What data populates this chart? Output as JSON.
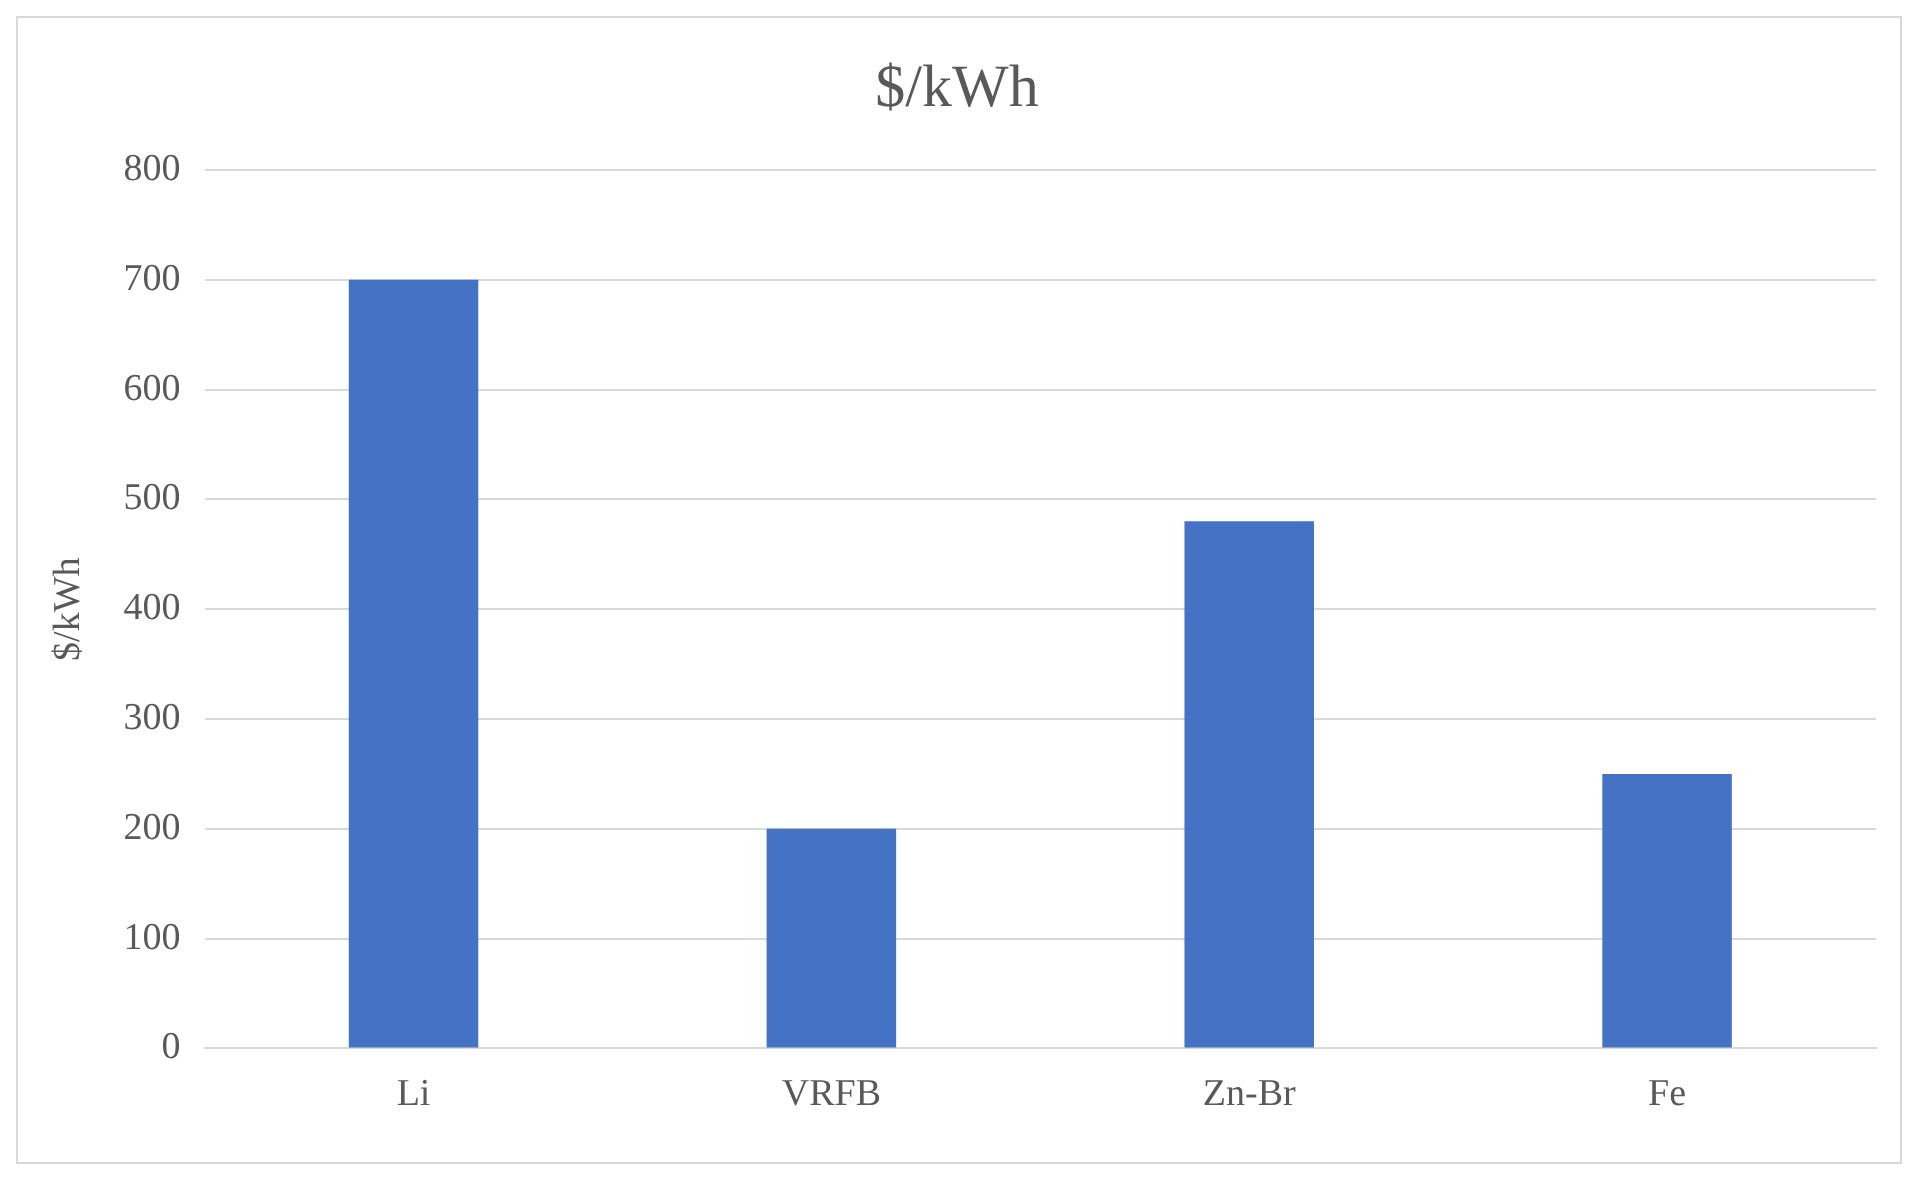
{
  "chart_data": {
    "type": "bar",
    "title": "$/kWh",
    "ylabel": "$/kWh",
    "categories": [
      "Li",
      "VRFB",
      "Zn-Br",
      "Fe"
    ],
    "values": [
      700,
      200,
      480,
      250
    ],
    "color": "#4472c4",
    "ylim": [
      0,
      800
    ],
    "yticks": [
      0,
      100,
      200,
      300,
      400,
      500,
      600,
      700,
      800
    ],
    "grid": "y",
    "legend": false
  }
}
